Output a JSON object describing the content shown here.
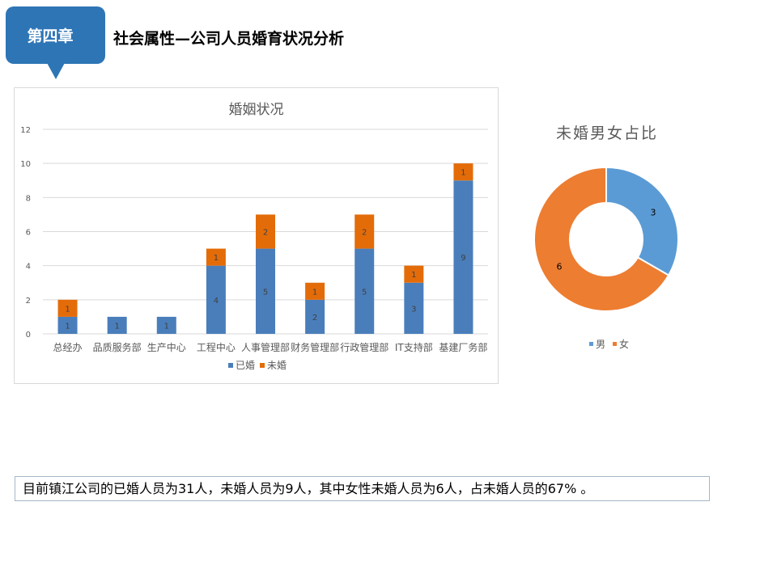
{
  "header": {
    "chapter_label": "第四章",
    "title": "社会属性—公司人员婚育状况分析",
    "badge_color": "#2e75b6"
  },
  "bar_chart": {
    "title": "婚姻状况",
    "y_ticks": [
      "0",
      "2",
      "4",
      "6",
      "8",
      "10",
      "12"
    ],
    "legend": [
      {
        "label": "已婚",
        "color": "#4a7ebb"
      },
      {
        "label": "未婚",
        "color": "#e36c09"
      }
    ]
  },
  "donut_chart": {
    "title": "未婚男女占比",
    "legend": [
      {
        "label": "男",
        "color": "#5b9bd5"
      },
      {
        "label": "女",
        "color": "#ed7d31"
      }
    ],
    "labels": {
      "male": "3",
      "female": "6"
    }
  },
  "summary": {
    "text": "目前镇江公司的已婚人员为31人，未婚人员为9人，其中女性未婚人员为6人，占未婚人员的67%  。"
  },
  "chart_data": [
    {
      "type": "bar",
      "stacked": true,
      "title": "婚姻状况",
      "categories": [
        "总经办",
        "品质服务部",
        "生产中心",
        "工程中心",
        "人事管理部",
        "财务管理部",
        "行政管理部",
        "IT支持部",
        "基建厂务部"
      ],
      "series": [
        {
          "name": "已婚",
          "color": "#4a7ebb",
          "values": [
            1,
            1,
            1,
            4,
            5,
            2,
            5,
            3,
            9
          ]
        },
        {
          "name": "未婚",
          "color": "#e36c09",
          "values": [
            1,
            0,
            0,
            1,
            2,
            1,
            2,
            1,
            1
          ]
        }
      ],
      "xlabel": "",
      "ylabel": "",
      "ylim": [
        0,
        12
      ],
      "yticks": [
        0,
        2,
        4,
        6,
        8,
        10,
        12
      ],
      "grid": true,
      "legend_position": "bottom"
    },
    {
      "type": "pie",
      "donut": true,
      "title": "未婚男女占比",
      "categories": [
        "男",
        "女"
      ],
      "values": [
        3,
        6
      ],
      "colors": [
        "#5b9bd5",
        "#ed7d31"
      ],
      "legend_position": "bottom"
    }
  ]
}
